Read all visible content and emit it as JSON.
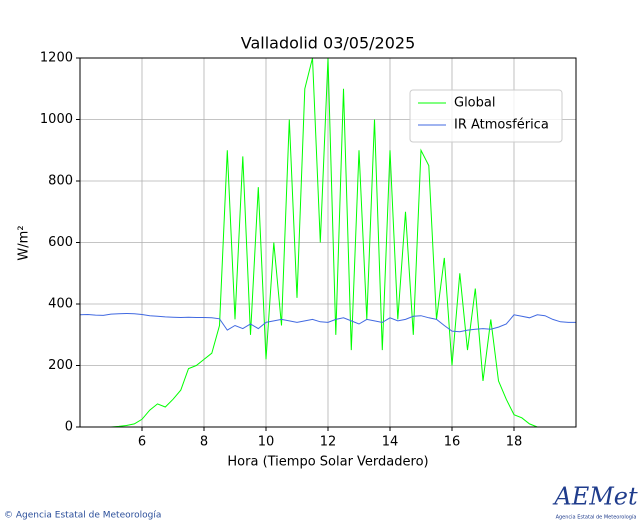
{
  "chart_data": {
    "type": "line",
    "title": "Valladolid 03/05/2025",
    "xlabel": "Hora (Tiempo Solar Verdadero)",
    "ylabel": "W/m²",
    "x": [
      4,
      4.25,
      4.5,
      4.75,
      5,
      5.25,
      5.5,
      5.75,
      6,
      6.25,
      6.5,
      6.75,
      7,
      7.25,
      7.5,
      7.75,
      8,
      8.25,
      8.5,
      8.75,
      9,
      9.25,
      9.5,
      9.75,
      10,
      10.25,
      10.5,
      10.75,
      11,
      11.25,
      11.5,
      11.75,
      12,
      12.25,
      12.5,
      12.75,
      13,
      13.25,
      13.5,
      13.75,
      14,
      14.25,
      14.5,
      14.75,
      15,
      15.25,
      15.5,
      15.75,
      16,
      16.25,
      16.5,
      16.75,
      17,
      17.25,
      17.5,
      17.75,
      18,
      18.25,
      18.5,
      18.75,
      19,
      19.25,
      19.5,
      19.75,
      20
    ],
    "series": [
      {
        "name": "Global",
        "color": "#00ff00",
        "values": [
          0,
          0,
          0,
          0,
          0,
          2,
          5,
          10,
          25,
          55,
          75,
          65,
          90,
          120,
          190,
          200,
          220,
          240,
          330,
          900,
          350,
          880,
          300,
          780,
          220,
          600,
          330,
          1000,
          420,
          1100,
          1200,
          600,
          1200,
          300,
          1100,
          250,
          900,
          350,
          1000,
          250,
          900,
          350,
          700,
          300,
          900,
          850,
          350,
          550,
          200,
          500,
          250,
          450,
          150,
          350,
          150,
          90,
          40,
          30,
          10,
          0,
          0,
          0,
          0,
          0,
          0
        ]
      },
      {
        "name": "IR Atmosférica",
        "color": "#4169e1",
        "values": [
          365,
          366,
          364,
          363,
          367,
          368,
          369,
          368,
          366,
          362,
          360,
          358,
          357,
          356,
          357,
          356,
          356,
          355,
          352,
          315,
          330,
          320,
          335,
          320,
          340,
          345,
          350,
          345,
          340,
          345,
          350,
          342,
          340,
          350,
          355,
          345,
          335,
          350,
          345,
          340,
          355,
          345,
          350,
          360,
          362,
          355,
          350,
          330,
          312,
          310,
          315,
          318,
          320,
          318,
          325,
          335,
          365,
          360,
          355,
          365,
          362,
          350,
          342,
          340,
          340
        ]
      }
    ],
    "xlim": [
      4,
      20
    ],
    "xticks": [
      6,
      8,
      10,
      12,
      14,
      16,
      18
    ],
    "ylim": [
      0,
      1200
    ],
    "yticks": [
      0,
      200,
      400,
      600,
      800,
      1000,
      1200
    ],
    "grid": true,
    "legend": "upper right"
  },
  "footer": {
    "copyright": "© Agencia Estatal de Meteorología",
    "logo": "AEMet",
    "logo_caption": "Agencia Estatal de Meteorología"
  }
}
